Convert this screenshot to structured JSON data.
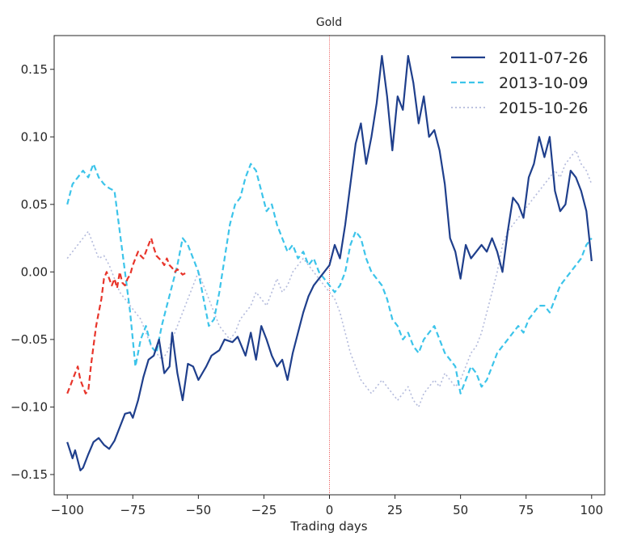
{
  "chart_data": {
    "type": "line",
    "title": "Gold",
    "xlabel": "Trading days",
    "ylabel": "",
    "xlim": [
      -105,
      105
    ],
    "ylim": [
      -0.165,
      0.175
    ],
    "xticks": [
      -100,
      -75,
      -50,
      -25,
      0,
      25,
      50,
      75,
      100
    ],
    "xtick_labels": [
      "−100",
      "−75",
      "−50",
      "−25",
      "0",
      "25",
      "50",
      "75",
      "100"
    ],
    "yticks": [
      -0.15,
      -0.1,
      -0.05,
      0.0,
      0.05,
      0.1,
      0.15
    ],
    "ytick_labels": [
      "−0.15",
      "−0.10",
      "−0.05",
      "0.00",
      "0.05",
      "0.10",
      "0.15"
    ],
    "grid": false,
    "legend_position": "top-right",
    "vline": {
      "x": 0,
      "color": "#e84a4a",
      "style": "dotted"
    },
    "series": [
      {
        "name": "2011-07-26",
        "color": "#1f3f8c",
        "style": "solid",
        "in_legend": true,
        "x": [
          -100,
          -98,
          -97,
          -95,
          -94,
          -92,
          -90,
          -88,
          -86,
          -84,
          -82,
          -80,
          -78,
          -76,
          -75,
          -73,
          -71,
          -69,
          -67,
          -65,
          -63,
          -61,
          -60,
          -58,
          -56,
          -54,
          -52,
          -50,
          -47,
          -45,
          -42,
          -40,
          -37,
          -35,
          -32,
          -30,
          -28,
          -26,
          -24,
          -22,
          -20,
          -18,
          -16,
          -14,
          -12,
          -10,
          -8,
          -6,
          -4,
          -2,
          0,
          2,
          4,
          6,
          8,
          10,
          12,
          14,
          16,
          18,
          20,
          22,
          24,
          26,
          28,
          30,
          32,
          34,
          36,
          38,
          40,
          42,
          44,
          46,
          48,
          50,
          52,
          54,
          56,
          58,
          60,
          62,
          64,
          66,
          68,
          70,
          72,
          74,
          76,
          78,
          80,
          82,
          84,
          86,
          88,
          90,
          92,
          94,
          96,
          98,
          100
        ],
        "values": [
          -0.126,
          -0.138,
          -0.132,
          -0.147,
          -0.145,
          -0.135,
          -0.126,
          -0.123,
          -0.128,
          -0.131,
          -0.125,
          -0.115,
          -0.105,
          -0.104,
          -0.108,
          -0.095,
          -0.078,
          -0.065,
          -0.062,
          -0.05,
          -0.075,
          -0.07,
          -0.045,
          -0.075,
          -0.095,
          -0.068,
          -0.07,
          -0.08,
          -0.07,
          -0.062,
          -0.058,
          -0.05,
          -0.052,
          -0.048,
          -0.062,
          -0.045,
          -0.065,
          -0.04,
          -0.05,
          -0.062,
          -0.07,
          -0.065,
          -0.08,
          -0.06,
          -0.045,
          -0.03,
          -0.018,
          -0.01,
          -0.005,
          0.0,
          0.005,
          0.02,
          0.01,
          0.035,
          0.065,
          0.095,
          0.11,
          0.08,
          0.1,
          0.125,
          0.16,
          0.13,
          0.09,
          0.13,
          0.12,
          0.16,
          0.14,
          0.11,
          0.13,
          0.1,
          0.105,
          0.09,
          0.065,
          0.025,
          0.015,
          -0.005,
          0.02,
          0.01,
          0.015,
          0.02,
          0.015,
          0.025,
          0.015,
          0.0,
          0.03,
          0.055,
          0.05,
          0.04,
          0.07,
          0.08,
          0.1,
          0.085,
          0.1,
          0.06,
          0.045,
          0.05,
          0.075,
          0.07,
          0.06,
          0.045,
          0.008
        ]
      },
      {
        "name": "2013-10-09",
        "color": "#3cc4ea",
        "style": "dashed",
        "in_legend": true,
        "x": [
          -100,
          -98,
          -96,
          -94,
          -92,
          -90,
          -88,
          -86,
          -84,
          -82,
          -80,
          -78,
          -76,
          -74,
          -72,
          -70,
          -68,
          -66,
          -64,
          -62,
          -60,
          -58,
          -56,
          -54,
          -52,
          -50,
          -48,
          -46,
          -44,
          -42,
          -40,
          -38,
          -36,
          -34,
          -32,
          -30,
          -28,
          -26,
          -24,
          -22,
          -20,
          -18,
          -16,
          -14,
          -12,
          -10,
          -8,
          -6,
          -4,
          -2,
          0,
          2,
          4,
          6,
          8,
          10,
          12,
          14,
          16,
          18,
          20,
          22,
          24,
          26,
          28,
          30,
          32,
          34,
          36,
          38,
          40,
          42,
          44,
          46,
          48,
          50,
          52,
          54,
          56,
          58,
          60,
          62,
          64,
          66,
          68,
          70,
          72,
          74,
          76,
          78,
          80,
          82,
          84,
          86,
          88,
          90,
          92,
          94,
          96,
          98,
          100
        ],
        "values": [
          0.05,
          0.065,
          0.07,
          0.075,
          0.07,
          0.08,
          0.07,
          0.065,
          0.062,
          0.06,
          0.03,
          0.0,
          -0.03,
          -0.07,
          -0.05,
          -0.04,
          -0.055,
          -0.06,
          -0.04,
          -0.025,
          -0.01,
          0.005,
          0.025,
          0.02,
          0.01,
          0.0,
          -0.02,
          -0.04,
          -0.035,
          -0.015,
          0.01,
          0.035,
          0.05,
          0.055,
          0.07,
          0.08,
          0.075,
          0.06,
          0.045,
          0.05,
          0.035,
          0.025,
          0.015,
          0.02,
          0.01,
          0.015,
          0.005,
          0.01,
          0.0,
          -0.005,
          -0.01,
          -0.015,
          -0.01,
          0.0,
          0.02,
          0.03,
          0.025,
          0.01,
          0.0,
          -0.005,
          -0.01,
          -0.02,
          -0.035,
          -0.04,
          -0.05,
          -0.045,
          -0.055,
          -0.06,
          -0.05,
          -0.045,
          -0.04,
          -0.05,
          -0.06,
          -0.065,
          -0.07,
          -0.09,
          -0.08,
          -0.07,
          -0.075,
          -0.085,
          -0.08,
          -0.07,
          -0.06,
          -0.055,
          -0.05,
          -0.045,
          -0.04,
          -0.045,
          -0.035,
          -0.03,
          -0.025,
          -0.025,
          -0.03,
          -0.02,
          -0.01,
          -0.005,
          0.0,
          0.005,
          0.01,
          0.02,
          0.025
        ]
      },
      {
        "name": "2015-10-26",
        "color": "#b4bbdc",
        "style": "dotted",
        "in_legend": true,
        "x": [
          -100,
          -98,
          -96,
          -94,
          -92,
          -90,
          -88,
          -86,
          -84,
          -82,
          -80,
          -78,
          -76,
          -74,
          -72,
          -70,
          -68,
          -66,
          -64,
          -62,
          -60,
          -58,
          -56,
          -54,
          -52,
          -50,
          -48,
          -46,
          -44,
          -42,
          -40,
          -38,
          -36,
          -34,
          -32,
          -30,
          -28,
          -26,
          -24,
          -22,
          -20,
          -18,
          -16,
          -14,
          -12,
          -10,
          -8,
          -6,
          -4,
          -2,
          0,
          2,
          4,
          6,
          8,
          10,
          12,
          14,
          16,
          18,
          20,
          22,
          24,
          26,
          28,
          30,
          32,
          34,
          36,
          38,
          40,
          42,
          44,
          46,
          48,
          50,
          52,
          54,
          56,
          58,
          60,
          62,
          64,
          66,
          68,
          70,
          72,
          74,
          76,
          78,
          80,
          82,
          84,
          86,
          88,
          90,
          92,
          94,
          96,
          98,
          100
        ],
        "values": [
          0.01,
          0.015,
          0.02,
          0.025,
          0.03,
          0.02,
          0.01,
          0.012,
          0.005,
          -0.005,
          -0.015,
          -0.02,
          -0.025,
          -0.03,
          -0.035,
          -0.045,
          -0.055,
          -0.06,
          -0.065,
          -0.06,
          -0.05,
          -0.04,
          -0.03,
          -0.02,
          -0.01,
          0.0,
          -0.01,
          -0.02,
          -0.03,
          -0.04,
          -0.045,
          -0.05,
          -0.045,
          -0.035,
          -0.03,
          -0.025,
          -0.015,
          -0.02,
          -0.025,
          -0.015,
          -0.005,
          -0.015,
          -0.01,
          0.0,
          0.005,
          0.01,
          0.005,
          0.0,
          -0.005,
          -0.01,
          -0.015,
          -0.02,
          -0.03,
          -0.045,
          -0.06,
          -0.07,
          -0.08,
          -0.085,
          -0.09,
          -0.085,
          -0.08,
          -0.085,
          -0.09,
          -0.095,
          -0.09,
          -0.085,
          -0.095,
          -0.1,
          -0.09,
          -0.085,
          -0.08,
          -0.085,
          -0.075,
          -0.08,
          -0.085,
          -0.08,
          -0.07,
          -0.06,
          -0.055,
          -0.045,
          -0.03,
          -0.015,
          0.0,
          0.02,
          0.03,
          0.035,
          0.04,
          0.045,
          0.05,
          0.055,
          0.06,
          0.065,
          0.07,
          0.075,
          0.07,
          0.08,
          0.085,
          0.09,
          0.08,
          0.075,
          0.065
        ]
      },
      {
        "name": "",
        "color": "#e8352b",
        "style": "dashed",
        "in_legend": false,
        "x": [
          -100,
          -99,
          -98,
          -97,
          -96,
          -95,
          -94,
          -93,
          -92,
          -91,
          -90,
          -89,
          -88,
          -87,
          -86,
          -85,
          -84,
          -83,
          -82,
          -81,
          -80,
          -79,
          -78,
          -77,
          -76,
          -75,
          -74,
          -73,
          -72,
          -71,
          -70,
          -69,
          -68,
          -67,
          -66,
          -65,
          -64,
          -63,
          -62,
          -61,
          -60,
          -59,
          -58,
          -57,
          -56,
          -55
        ],
        "values": [
          -0.09,
          -0.085,
          -0.08,
          -0.075,
          -0.07,
          -0.08,
          -0.085,
          -0.09,
          -0.088,
          -0.07,
          -0.055,
          -0.04,
          -0.03,
          -0.02,
          -0.005,
          0.0,
          -0.005,
          -0.01,
          -0.005,
          -0.012,
          0.0,
          -0.008,
          -0.01,
          -0.005,
          -0.002,
          0.005,
          0.01,
          0.015,
          0.012,
          0.01,
          0.015,
          0.02,
          0.025,
          0.018,
          0.012,
          0.01,
          0.008,
          0.005,
          0.01,
          0.005,
          0.003,
          0.0,
          0.002,
          0.0,
          -0.002,
          -0.001
        ]
      }
    ]
  }
}
